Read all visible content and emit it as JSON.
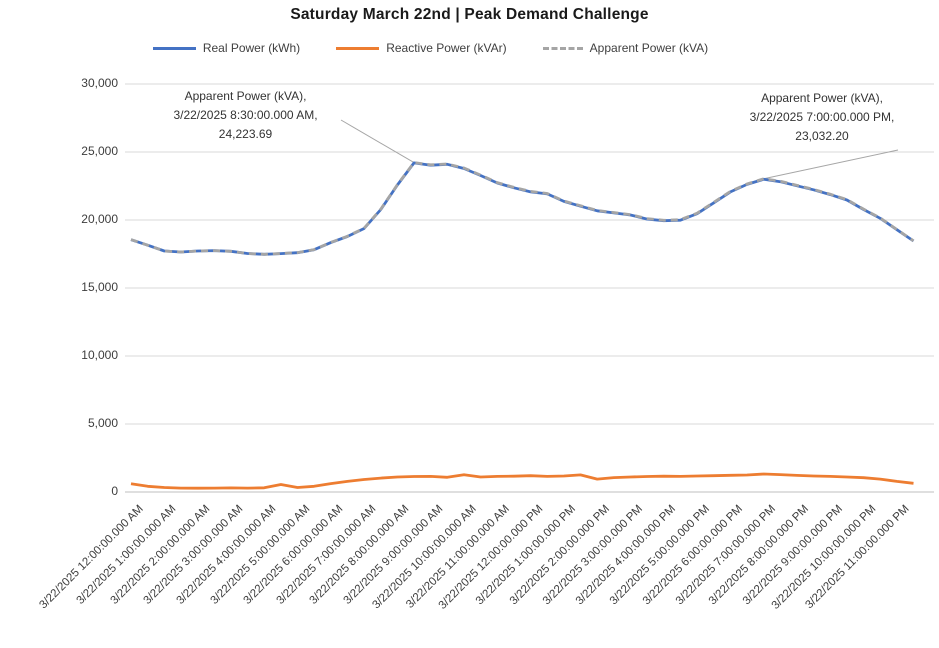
{
  "title": "Saturday March 22nd | Peak Demand Challenge",
  "legend": {
    "items": [
      {
        "label": "Real Power (kWh)",
        "color": "#4472C4",
        "style": "solid"
      },
      {
        "label": "Reactive Power (kVAr)",
        "color": "#ED7D31",
        "style": "solid"
      },
      {
        "label": "Apparent Power (kVA)",
        "color": "#A5A5A5",
        "style": "dashed"
      }
    ]
  },
  "chart_data": {
    "type": "line",
    "title": "Saturday March 22nd | Peak Demand Challenge",
    "x_interval_minutes": 30,
    "ylim": [
      0,
      30000
    ],
    "grid": "horizontal",
    "legend_position": "top",
    "y_ticks": [
      {
        "value": 0,
        "label": "0"
      },
      {
        "value": 5000,
        "label": "5,000"
      },
      {
        "value": 10000,
        "label": "10,000"
      },
      {
        "value": 15000,
        "label": "15,000"
      },
      {
        "value": 20000,
        "label": "20,000"
      },
      {
        "value": 25000,
        "label": "25,000"
      },
      {
        "value": 30000,
        "label": "30,000"
      }
    ],
    "x_labels": [
      "3/22/2025 12:00:00.000 AM",
      "3/22/2025 1:00:00.000 AM",
      "3/22/2025 2:00:00.000 AM",
      "3/22/2025 3:00:00.000 AM",
      "3/22/2025 4:00:00.000 AM",
      "3/22/2025 5:00:00.000 AM",
      "3/22/2025 6:00:00.000 AM",
      "3/22/2025 7:00:00.000 AM",
      "3/22/2025 8:00:00.000 AM",
      "3/22/2025 9:00:00.000 AM",
      "3/22/2025 10:00:00.000 AM",
      "3/22/2025 11:00:00.000 AM",
      "3/22/2025 12:00:00.000 PM",
      "3/22/2025 1:00:00.000 PM",
      "3/22/2025 2:00:00.000 PM",
      "3/22/2025 3:00:00.000 PM",
      "3/22/2025 4:00:00.000 PM",
      "3/22/2025 5:00:00.000 PM",
      "3/22/2025 6:00:00.000 PM",
      "3/22/2025 7:00:00.000 PM",
      "3/22/2025 8:00:00.000 PM",
      "3/22/2025 9:00:00.000 PM",
      "3/22/2025 10:00:00.000 PM",
      "3/22/2025 11:00:00.000 PM"
    ],
    "series": [
      {
        "name": "Real Power (kWh)",
        "color": "#4472C4",
        "dash": null,
        "values": [
          18550,
          18145,
          17717,
          17648,
          17718,
          17748,
          17697,
          17538,
          17477,
          17531,
          17597,
          17815,
          18340,
          18784,
          19378,
          20775,
          22573,
          24196.87,
          24033,
          24096,
          23786,
          23274,
          22721,
          22370,
          22067,
          21920,
          21367,
          21012,
          20678,
          20523,
          20370,
          20068,
          19946,
          19987,
          20466,
          21266,
          22066,
          22615,
          22994.4,
          22814,
          22517,
          22219,
          21870,
          21472,
          20774,
          20128,
          19284,
          18459
        ]
      },
      {
        "name": "Reactive Power (kVAr)",
        "color": "#ED7D31",
        "dash": null,
        "values": [
          600,
          420,
          330,
          290,
          280,
          290,
          300,
          290,
          310,
          550,
          330,
          420,
          620,
          780,
          920,
          1020,
          1100,
          1140,
          1150,
          1080,
          1270,
          1100,
          1150,
          1160,
          1200,
          1150,
          1180,
          1260,
          950,
          1060,
          1100,
          1140,
          1160,
          1150,
          1180,
          1200,
          1230,
          1250,
          1320,
          1280,
          1220,
          1180,
          1150,
          1100,
          1050,
          950,
          780,
          640
        ]
      },
      {
        "name": "Apparent Power (kVA)",
        "color": "#A5A5A5",
        "dash": "7 5",
        "values": [
          18560,
          18150,
          17720,
          17650,
          17720,
          17750,
          17700,
          17540,
          17480,
          17540,
          17600,
          17820,
          18350,
          18800,
          19400,
          20800,
          22600,
          24223.69,
          24060,
          24120,
          23820,
          23300,
          22750,
          22400,
          22100,
          21950,
          21400,
          21050,
          20700,
          20550,
          20400,
          20100,
          19980,
          20020,
          20500,
          21300,
          22100,
          22650,
          23032.2,
          22850,
          22550,
          22250,
          21900,
          21500,
          20800,
          20150,
          19300,
          18470
        ]
      }
    ],
    "annotations": [
      {
        "line1": "Apparent Power (kVA),",
        "line2": "3/22/2025 8:30:00.000 AM,",
        "line3": "24,223.69",
        "value": 24223.69,
        "point_index": 17
      },
      {
        "line1": "Apparent Power (kVA),",
        "line2": "3/22/2025 7:00:00.000 PM,",
        "line3": "23,032.20",
        "value": 23032.2,
        "point_index": 38
      }
    ]
  }
}
